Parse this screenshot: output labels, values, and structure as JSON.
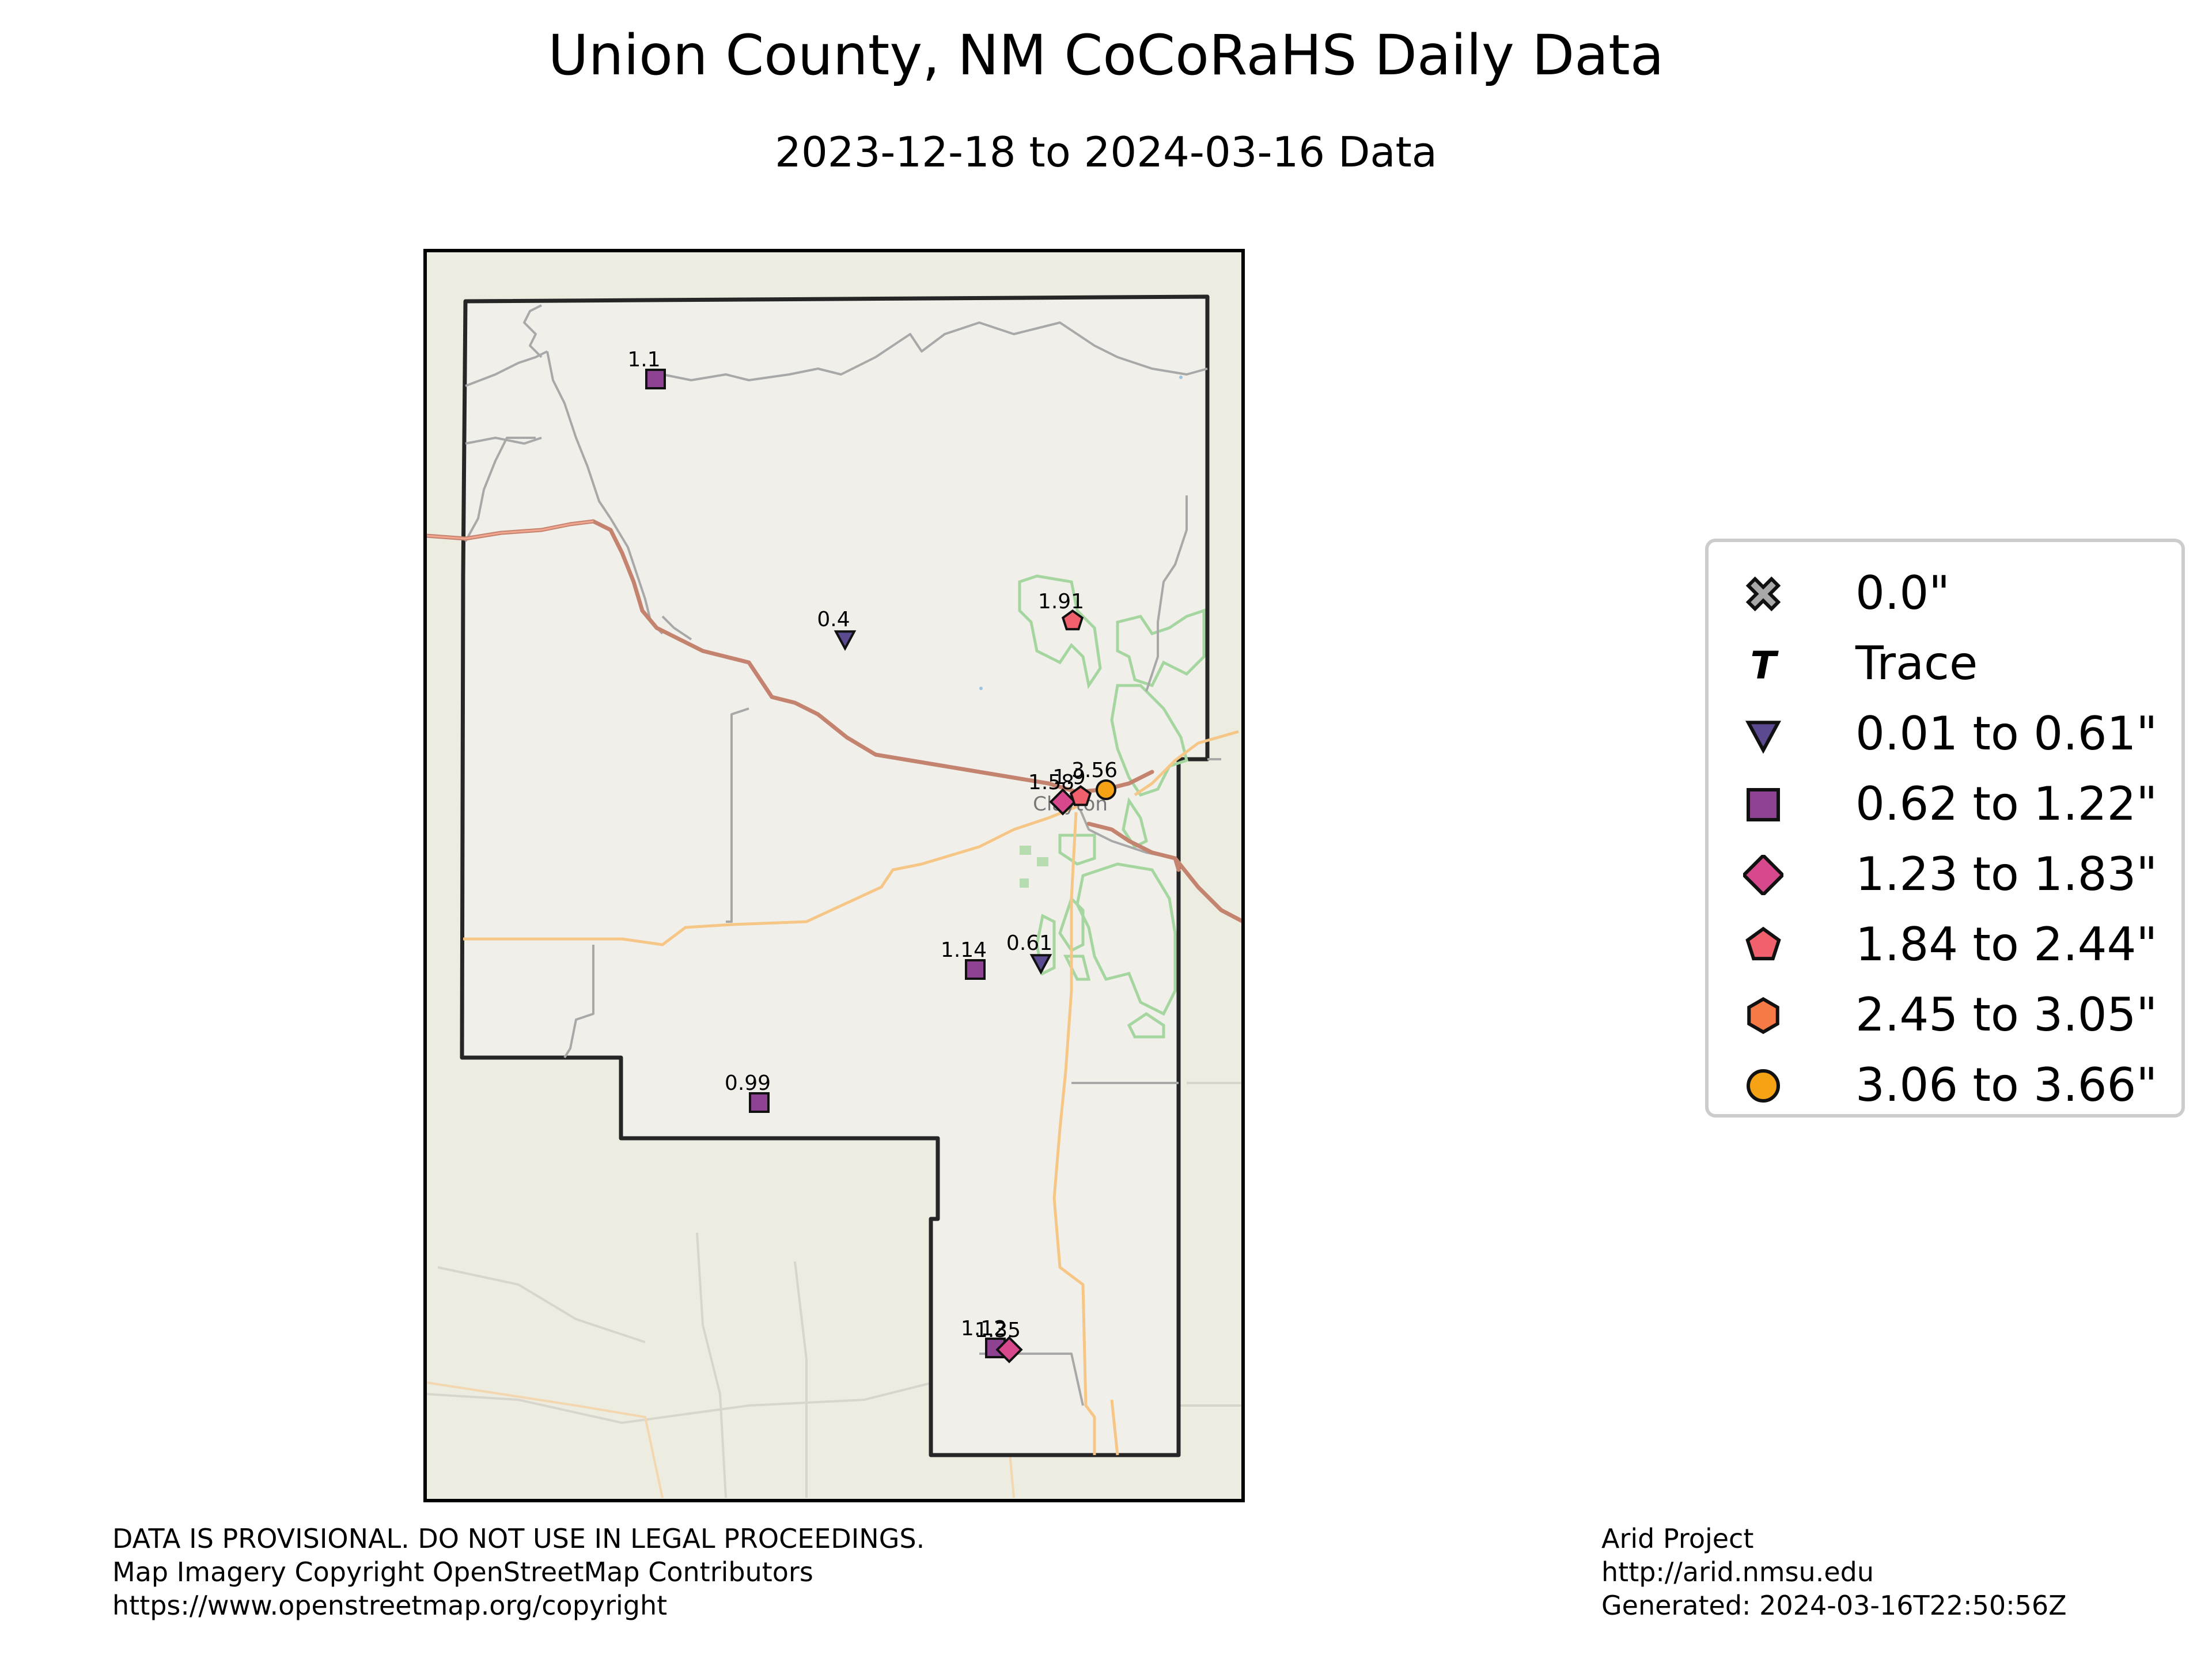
{
  "title": "Union County, NM CoCoRaHS Daily Data",
  "subtitle": "2023-12-18 to 2024-03-16 Data",
  "map": {
    "place_label": "Clayton",
    "colors": {
      "land_outside": "#ecede0",
      "county_fill": "#f1efea",
      "county_border": "#262626",
      "highway": "#e79a85",
      "road_orange": "#f3c586",
      "road_gray": "#aaaaaa",
      "park_green": "#9fd49a"
    },
    "stations": [
      {
        "label": "1.1",
        "value": 1.1,
        "category": "0.62 to 1.22\""
      },
      {
        "label": "0.4",
        "value": 0.4,
        "category": "0.01 to 0.61\""
      },
      {
        "label": "1.91",
        "value": 1.91,
        "category": "1.84 to 2.44\""
      },
      {
        "label": "1.58",
        "value": 1.58,
        "category": "1.23 to 1.83\""
      },
      {
        "label": "1.9",
        "value": 1.9,
        "category": "1.84 to 2.44\""
      },
      {
        "label": "3.56",
        "value": 3.56,
        "category": "3.06 to 3.66\""
      },
      {
        "label": "1.14",
        "value": 1.14,
        "category": "0.62 to 1.22\""
      },
      {
        "label": "0.61",
        "value": 0.61,
        "category": "0.01 to 0.61\""
      },
      {
        "label": "0.99",
        "value": 0.99,
        "category": "0.62 to 1.22\""
      },
      {
        "label": "1.12",
        "value": 1.12,
        "category": "0.62 to 1.22\""
      },
      {
        "label": "1.35",
        "value": 1.35,
        "category": "1.23 to 1.83\""
      }
    ]
  },
  "legend": {
    "items": [
      {
        "label": "0.0\"",
        "symbol": "x-icon",
        "color": "#a9a9a9"
      },
      {
        "label": "Trace",
        "symbol": "t-icon",
        "color": "#000000"
      },
      {
        "label": "0.01 to 0.61\"",
        "symbol": "triangle-icon",
        "color": "#5b4a8f"
      },
      {
        "label": "0.62 to 1.22\"",
        "symbol": "square-icon",
        "color": "#8e4292"
      },
      {
        "label": "1.23 to 1.83\"",
        "symbol": "diamond-icon",
        "color": "#d8488c"
      },
      {
        "label": "1.84 to 2.44\"",
        "symbol": "pentagon-icon",
        "color": "#f0606d"
      },
      {
        "label": "2.45 to 3.05\"",
        "symbol": "hexagon-icon",
        "color": "#f57a45"
      },
      {
        "label": "3.06 to 3.66\"",
        "symbol": "circle-icon",
        "color": "#f5a315"
      }
    ]
  },
  "footer": {
    "left": "DATA IS PROVISIONAL. DO NOT USE IN LEGAL PROCEEDINGS.\nMap Imagery Copyright OpenStreetMap Contributors\nhttps://www.openstreetmap.org/copyright",
    "right": "Arid Project\nhttp://arid.nmsu.edu\nGenerated: 2024-03-16T22:50:56Z"
  }
}
